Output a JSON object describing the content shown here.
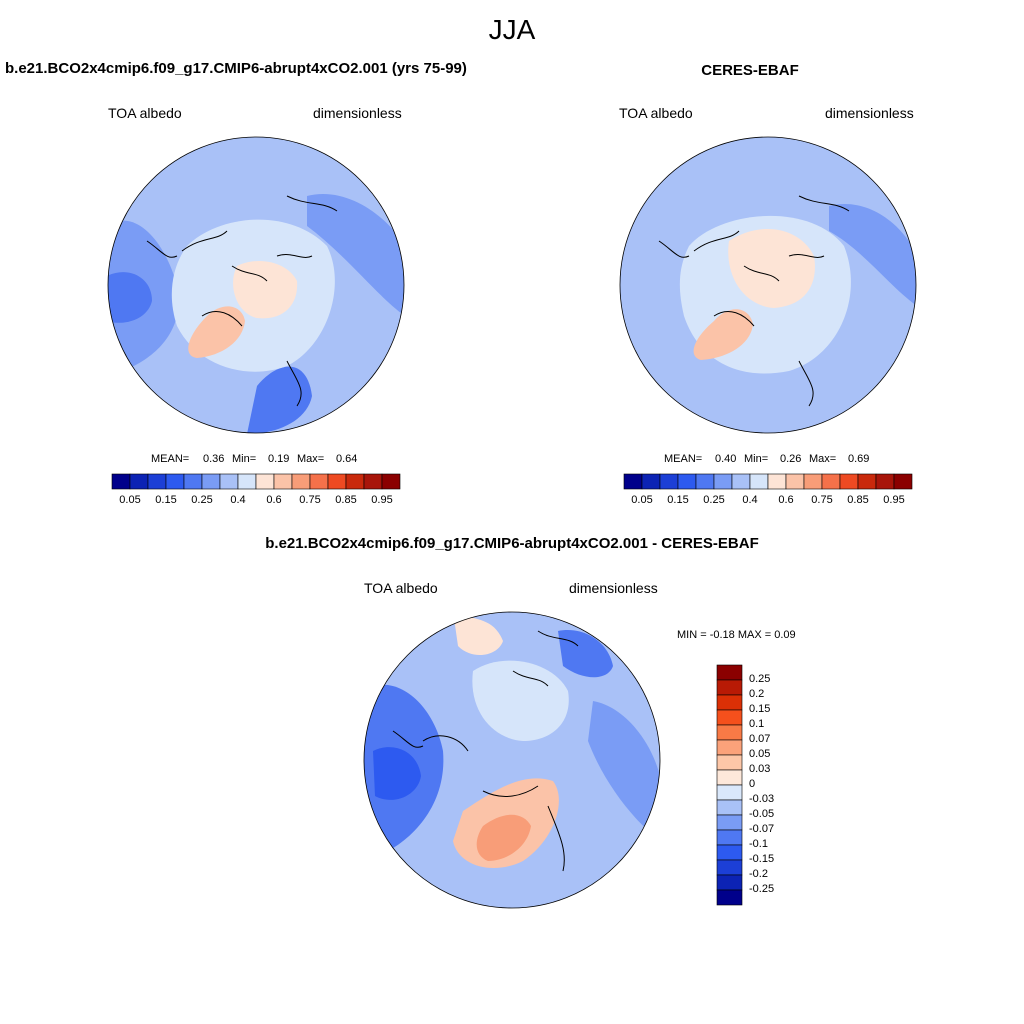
{
  "figure": {
    "title": "JJA"
  },
  "panels": [
    {
      "title": "b.e21.BCO2x4cmip6.f09_g17.CMIP6-abrupt4xCO2.001 (yrs 75-99)",
      "left_label": "TOA albedo",
      "right_label": "dimensionless",
      "stats": {
        "mean_label": "MEAN=",
        "mean_value": "0.36",
        "min_label": "Min=",
        "min_value": "0.19",
        "max_label": "Max=",
        "max_value": "0.64"
      }
    },
    {
      "title": "CERES-EBAF",
      "left_label": "TOA albedo",
      "right_label": "dimensionless",
      "stats": {
        "mean_label": "MEAN=",
        "mean_value": "0.40",
        "min_label": "Min=",
        "min_value": "0.26",
        "max_label": "Max=",
        "max_value": "0.69"
      }
    },
    {
      "title": "b.e21.BCO2x4cmip6.f09_g17.CMIP6-abrupt4xCO2.001 - CERES-EBAF",
      "left_label": "TOA albedo",
      "right_label": "dimensionless",
      "stats_line": "MIN =  -0.18 MAX =   0.09"
    }
  ],
  "colorbar_abs": {
    "colors": [
      "#00008b",
      "#0c23b4",
      "#1c3fd6",
      "#2d5af0",
      "#4f78f2",
      "#7a9cf5",
      "#a9c1f7",
      "#d6e5fa",
      "#fde4d6",
      "#fbc3a8",
      "#f89d78",
      "#f5714a",
      "#ee4a22",
      "#c9290c",
      "#a8150a",
      "#8b0000"
    ],
    "labels": [
      "0.05",
      "0.15",
      "0.25",
      "0.4",
      "0.6",
      "0.75",
      "0.85",
      "0.95"
    ]
  },
  "colorbar_diff": {
    "colors": [
      "#8b0000",
      "#b81a05",
      "#db3006",
      "#f5501c",
      "#f87a46",
      "#fba27a",
      "#fdc7a8",
      "#fde8da",
      "#dae8fb",
      "#a9c1f7",
      "#7a9cf5",
      "#4f78f2",
      "#2d5af0",
      "#1c3fd6",
      "#0c23b4",
      "#00008b"
    ],
    "labels": [
      "0.25",
      "0.2",
      "0.15",
      "0.1",
      "0.07",
      "0.05",
      "0.03",
      "0",
      "-0.03",
      "-0.05",
      "-0.07",
      "-0.1",
      "-0.15",
      "-0.2",
      "-0.25"
    ]
  },
  "map_colors": {
    "deep_blue": "#2d5af0",
    "mid_blue": "#4f78f2",
    "blue": "#7a9cf5",
    "light_blue": "#a9c1f7",
    "pale_blue": "#d6e5fa",
    "pale_peach": "#fde4d6",
    "peach": "#fbc3a8",
    "salmon": "#f89d78"
  }
}
